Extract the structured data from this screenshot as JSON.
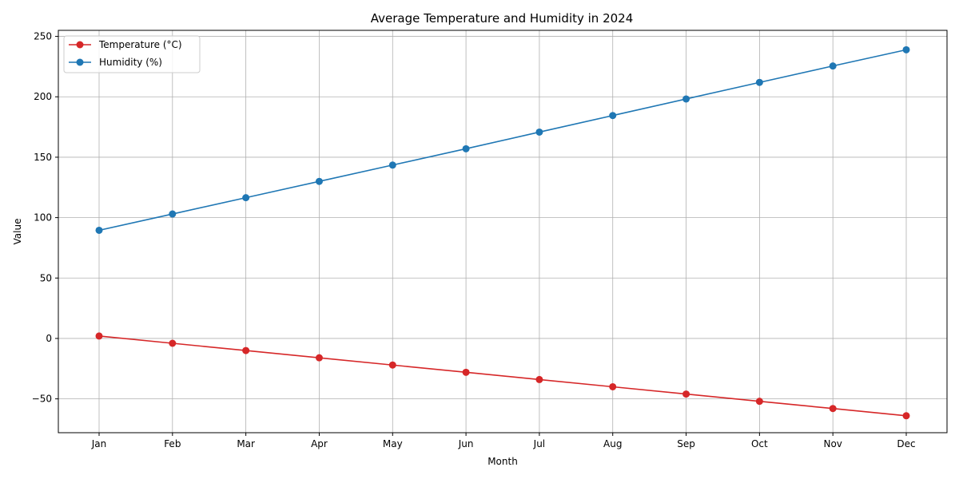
{
  "chart_data": {
    "type": "line",
    "title": "Average Temperature and Humidity in 2024",
    "xlabel": "Month",
    "ylabel": "Value",
    "categories": [
      "Jan",
      "Feb",
      "Mar",
      "Apr",
      "May",
      "Jun",
      "Jul",
      "Aug",
      "Sep",
      "Oct",
      "Nov",
      "Dec"
    ],
    "ylim": [
      -78,
      255
    ],
    "yticks": [
      -50,
      0,
      50,
      100,
      150,
      200,
      250
    ],
    "ytick_labels": [
      "−50",
      "0",
      "50",
      "100",
      "150",
      "200",
      "250"
    ],
    "grid": true,
    "legend_position": "top-left",
    "series": [
      {
        "name": "Temperature (°C)",
        "color": "#d62728",
        "values": [
          2.0,
          -4.0,
          -10.0,
          -16.0,
          -22.0,
          -28.0,
          -34.0,
          -40.0,
          -46.0,
          -52.0,
          -58.0,
          -64.0
        ]
      },
      {
        "name": "Humidity (%)",
        "color": "#1f77b4",
        "values": [
          89.5,
          103.0,
          116.5,
          130.0,
          143.5,
          157.0,
          170.8,
          184.5,
          198.2,
          211.9,
          225.5,
          238.9
        ]
      }
    ]
  }
}
